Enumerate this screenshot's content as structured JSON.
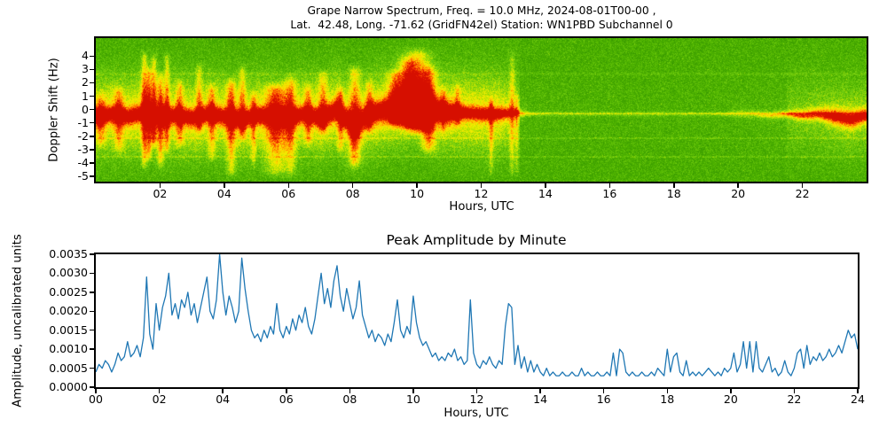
{
  "figure": {
    "kind": "matplotlib-style scientific figure",
    "background": "#ffffff",
    "text_color": "#000000"
  },
  "chart_data": [
    {
      "type": "heatmap",
      "name": "doppler-spectrogram",
      "title_line1": "Grape Narrow Spectrum, Freq. = 10.0 MHz, 2024-08-01T00-00 ,",
      "title_line2": "Lat.  42.48, Long. -71.62 (GridFN42el) Station: WN1PBD Subchannel 0",
      "xlabel": "Hours, UTC",
      "ylabel": "Doppler Shift (Hz)",
      "xticks": [
        "02",
        "04",
        "06",
        "08",
        "10",
        "12",
        "14",
        "16",
        "18",
        "20",
        "22"
      ],
      "yticks": [
        4,
        3,
        2,
        1,
        0,
        -1,
        -2,
        -3,
        -4,
        -5
      ],
      "x_range_hours": [
        0,
        24
      ],
      "y_range_hz": [
        -5.4,
        5.35
      ],
      "grid": false,
      "colormap_stops": [
        [
          0.0,
          "#217f00"
        ],
        [
          0.3,
          "#4fb400"
        ],
        [
          0.42,
          "#76d011"
        ],
        [
          0.52,
          "#b4e000"
        ],
        [
          0.62,
          "#eef000"
        ],
        [
          0.72,
          "#ffd800"
        ],
        [
          0.8,
          "#ff9d00"
        ],
        [
          0.88,
          "#ff5f00"
        ],
        [
          0.95,
          "#ef2600"
        ],
        [
          1.0,
          "#d60f00"
        ]
      ],
      "band": {
        "step_hours": 0.5,
        "center_hz": [
          -0.5,
          -0.3,
          -0.5,
          -0.2,
          -0.5,
          -0.4,
          -0.6,
          -0.3,
          -0.5,
          -0.7,
          -0.4,
          -0.5,
          -0.6,
          -0.3,
          -0.6,
          0.0,
          -1.2,
          -0.3,
          0.0,
          0.2,
          0.4,
          0.0,
          -0.2,
          -0.2,
          -0.3,
          -0.3,
          -0.2,
          -0.3,
          -0.3,
          -0.3,
          -0.3,
          -0.3,
          -0.3,
          -0.3,
          -0.3,
          -0.3,
          -0.3,
          -0.3,
          -0.3,
          -0.3,
          -0.3,
          -0.3,
          -0.4,
          -0.3,
          -0.4,
          -0.3,
          -0.5,
          -0.7,
          -0.4
        ],
        "strength": [
          0.9,
          0.9,
          0.9,
          0.9,
          0.9,
          0.9,
          0.9,
          0.9,
          0.9,
          0.9,
          0.9,
          0.9,
          0.9,
          0.9,
          0.9,
          0.9,
          0.9,
          0.9,
          0.9,
          0.9,
          0.9,
          0.9,
          0.9,
          0.9,
          0.9,
          0.9,
          0.55,
          0.3,
          0.2,
          0.2,
          0.2,
          0.2,
          0.2,
          0.2,
          0.2,
          0.2,
          0.2,
          0.2,
          0.2,
          0.25,
          0.3,
          0.35,
          0.45,
          0.55,
          0.65,
          0.7,
          0.85,
          0.9,
          0.85
        ],
        "width_hz": [
          0.45,
          0.45,
          0.45,
          0.45,
          0.45,
          0.45,
          0.45,
          0.45,
          0.45,
          0.45,
          0.45,
          0.45,
          0.45,
          0.45,
          0.45,
          0.6,
          0.6,
          0.6,
          0.6,
          0.6,
          0.6,
          0.6,
          0.6,
          0.35,
          0.35,
          0.35,
          0.35,
          0.12,
          0.12,
          0.12,
          0.12,
          0.12,
          0.12,
          0.12,
          0.12,
          0.12,
          0.12,
          0.12,
          0.12,
          0.12,
          0.2,
          0.2,
          0.2,
          0.2,
          0.3,
          0.35,
          0.45,
          0.5,
          0.4
        ]
      },
      "plume_format": [
        "hour",
        "width_hours",
        "top_hz",
        "bottom_hz",
        "amplitude"
      ],
      "plumes": [
        [
          0.15,
          0.1,
          1.5,
          -3.0,
          0.25
        ],
        [
          0.7,
          0.1,
          2.0,
          -3.5,
          0.3
        ],
        [
          1.5,
          0.07,
          4.6,
          -4.6,
          0.5
        ],
        [
          1.65,
          0.06,
          3.5,
          -4.0,
          0.45
        ],
        [
          1.8,
          0.06,
          4.4,
          -3.0,
          0.5
        ],
        [
          2.0,
          0.07,
          3.0,
          -4.5,
          0.45
        ],
        [
          2.2,
          0.06,
          4.5,
          -3.5,
          0.4
        ],
        [
          2.6,
          0.08,
          2.5,
          -3.0,
          0.3
        ],
        [
          3.2,
          0.07,
          3.8,
          -2.0,
          0.3
        ],
        [
          3.6,
          0.08,
          2.2,
          -4.0,
          0.3
        ],
        [
          4.2,
          0.1,
          2.6,
          -5.2,
          0.42
        ],
        [
          4.55,
          0.08,
          3.6,
          -2.5,
          0.35
        ],
        [
          4.9,
          0.06,
          1.5,
          -4.5,
          0.3
        ],
        [
          5.6,
          0.22,
          2.2,
          -5.2,
          0.45
        ],
        [
          6.05,
          0.12,
          2.8,
          -5.2,
          0.38
        ],
        [
          6.6,
          0.08,
          2.2,
          -3.0,
          0.3
        ],
        [
          7.05,
          0.1,
          3.2,
          -2.0,
          0.35
        ],
        [
          7.6,
          0.07,
          2.0,
          -3.5,
          0.3
        ],
        [
          8.05,
          0.12,
          3.6,
          -4.6,
          0.45
        ],
        [
          8.5,
          0.08,
          2.5,
          -2.0,
          0.3
        ],
        [
          9.3,
          0.15,
          3.2,
          -1.5,
          0.45
        ],
        [
          9.7,
          0.2,
          4.2,
          -1.5,
          0.55
        ],
        [
          10.0,
          0.28,
          4.8,
          -2.0,
          0.6
        ],
        [
          10.35,
          0.15,
          3.6,
          -3.5,
          0.45
        ],
        [
          10.8,
          0.07,
          2.0,
          -2.0,
          0.25
        ],
        [
          11.25,
          0.06,
          2.2,
          -1.5,
          0.25
        ],
        [
          12.3,
          0.05,
          1.2,
          -5.2,
          0.3
        ],
        [
          12.95,
          0.06,
          4.6,
          -5.2,
          0.32
        ],
        [
          13.1,
          0.04,
          1.5,
          -5.2,
          0.25
        ]
      ],
      "faint_horizontal_lines": [
        [
          -0.25,
          0.1
        ],
        [
          -2.1,
          0.085
        ],
        [
          -3.5,
          0.085
        ],
        [
          2.7,
          0.05
        ]
      ]
    },
    {
      "type": "line",
      "name": "peak-amplitude-by-minute",
      "title": "Peak Amplitude by Minute",
      "xlabel": "Hours, UTC",
      "ylabel": "Amplitude, uncalibrated units",
      "xticks": [
        "00",
        "02",
        "04",
        "06",
        "08",
        "10",
        "12",
        "14",
        "16",
        "18",
        "20",
        "22",
        "24"
      ],
      "yticks": [
        "0.0000",
        "0.0005",
        "0.0010",
        "0.0015",
        "0.0020",
        "0.0025",
        "0.0030",
        "0.0035"
      ],
      "xlim": [
        0,
        24
      ],
      "ylim": [
        0,
        0.0035
      ],
      "grid": false,
      "legend": "none",
      "line_color": "#1f77b4",
      "x_start_hours": 0,
      "x_step_hours": 0.1,
      "value_scale": 0.0001,
      "values": [
        4,
        6,
        5,
        7,
        6,
        4,
        6,
        9,
        7,
        8,
        12,
        8,
        9,
        11,
        8,
        13,
        29,
        14,
        10,
        22,
        15,
        21,
        24,
        30,
        19,
        22,
        18,
        23,
        21,
        25,
        19,
        22,
        17,
        21,
        25,
        29,
        20,
        18,
        23,
        35,
        25,
        19,
        24,
        21,
        17,
        20,
        34,
        26,
        20,
        15,
        13,
        14,
        12,
        15,
        13,
        16,
        14,
        22,
        15,
        13,
        16,
        14,
        18,
        15,
        19,
        17,
        21,
        16,
        14,
        18,
        24,
        30,
        22,
        26,
        21,
        28,
        32,
        24,
        20,
        26,
        22,
        18,
        21,
        28,
        19,
        16,
        13,
        15,
        12,
        14,
        13,
        11,
        14,
        12,
        17,
        23,
        15,
        13,
        16,
        14,
        24,
        17,
        13,
        11,
        12,
        10,
        8,
        9,
        7,
        8,
        7,
        9,
        8,
        10,
        7,
        8,
        6,
        7,
        23,
        9,
        6,
        5,
        7,
        6,
        8,
        6,
        5,
        7,
        6,
        16,
        22,
        21,
        6,
        11,
        5,
        8,
        4,
        7,
        4,
        6,
        4,
        3,
        5,
        3,
        4,
        3,
        3,
        4,
        3,
        3,
        4,
        3,
        3,
        5,
        3,
        4,
        3,
        3,
        4,
        3,
        3,
        4,
        3,
        9,
        3,
        10,
        9,
        4,
        3,
        4,
        3,
        3,
        4,
        3,
        3,
        4,
        3,
        5,
        4,
        3,
        10,
        4,
        8,
        9,
        4,
        3,
        7,
        3,
        4,
        3,
        4,
        3,
        4,
        5,
        4,
        3,
        4,
        3,
        5,
        4,
        5,
        9,
        4,
        6,
        12,
        5,
        12,
        4,
        12,
        5,
        4,
        6,
        8,
        4,
        5,
        3,
        4,
        7,
        4,
        3,
        5,
        9,
        10,
        5,
        11,
        6,
        8,
        7,
        9,
        7,
        8,
        10,
        8,
        9,
        11,
        9,
        12,
        15,
        13,
        14,
        10
      ]
    }
  ]
}
